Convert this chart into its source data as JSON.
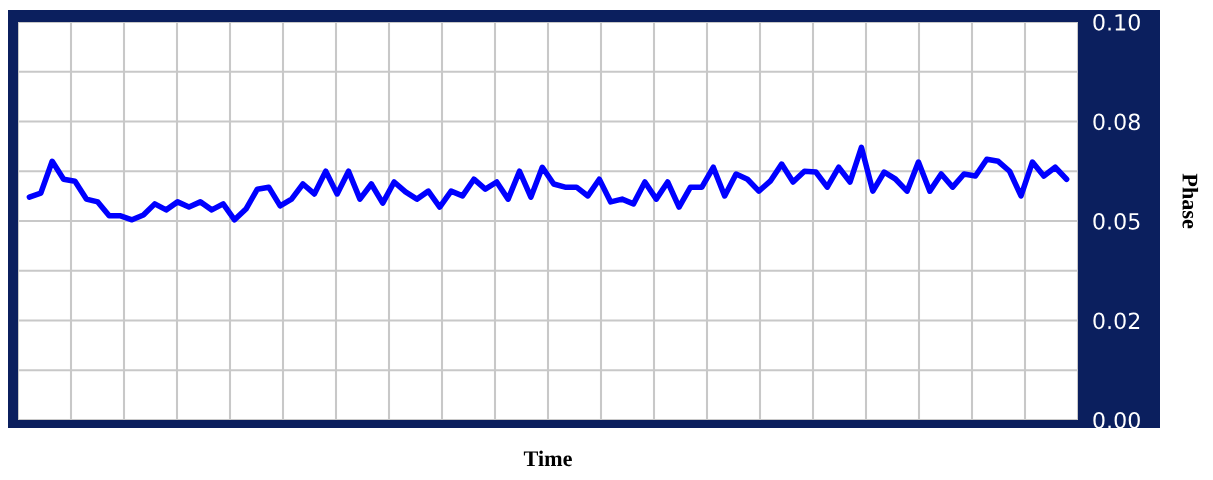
{
  "chart_data": {
    "type": "line",
    "xlabel": "Time",
    "ylabel": "Phase",
    "categories": [
      null,
      null,
      null,
      null,
      null,
      null,
      null,
      null,
      null,
      null,
      null,
      null,
      null,
      null,
      null,
      null,
      null,
      null,
      null,
      null,
      null,
      null,
      null,
      null,
      null,
      null,
      null,
      null,
      null,
      null,
      null,
      null,
      null,
      null,
      null,
      null,
      null,
      null,
      null,
      null,
      null,
      null,
      null,
      null,
      null,
      null,
      null,
      null,
      null,
      null,
      null,
      null,
      null,
      null,
      null,
      null,
      null,
      null,
      null,
      null,
      null,
      null,
      null,
      null,
      null,
      null,
      null,
      null,
      null,
      null,
      null,
      null,
      null,
      null,
      null,
      null,
      null,
      null,
      null,
      null,
      null,
      null,
      null,
      null,
      null,
      null,
      null,
      null,
      null,
      null,
      null,
      null
    ],
    "series": [
      {
        "color": "#0000ff",
        "values": [
          0.056,
          0.057,
          0.065,
          0.0605,
          0.06,
          0.0555,
          0.0548,
          0.0513,
          0.0513,
          0.0503,
          0.0515,
          0.0543,
          0.0528,
          0.0548,
          0.0535,
          0.0548,
          0.0528,
          0.0543,
          0.0503,
          0.053,
          0.058,
          0.0585,
          0.0538,
          0.0555,
          0.0593,
          0.0568,
          0.0625,
          0.0568,
          0.0625,
          0.0555,
          0.0593,
          0.0545,
          0.0598,
          0.0573,
          0.0555,
          0.0575,
          0.0535,
          0.0575,
          0.0563,
          0.0605,
          0.058,
          0.0598,
          0.0555,
          0.0625,
          0.056,
          0.0635,
          0.0593,
          0.0585,
          0.0585,
          0.0563,
          0.0605,
          0.0548,
          0.0555,
          0.0543,
          0.0598,
          0.0555,
          0.0598,
          0.0535,
          0.0585,
          0.0585,
          0.0635,
          0.0563,
          0.0618,
          0.0605,
          0.0575,
          0.06,
          0.0643,
          0.0598,
          0.0625,
          0.0623,
          0.0585,
          0.0635,
          0.0598,
          0.0685,
          0.0575,
          0.0623,
          0.0605,
          0.0575,
          0.0648,
          0.0575,
          0.0618,
          0.0585,
          0.0618,
          0.0613,
          0.0655,
          0.065,
          0.0625,
          0.0563,
          0.0648,
          0.0613,
          0.0635,
          0.0605
        ]
      }
    ],
    "ylim": [
      0,
      0.1
    ],
    "yticks": [
      {
        "value": 0,
        "label": "0.00"
      },
      {
        "value": 0.0125,
        "label": null
      },
      {
        "value": 0.025,
        "label": "0.02"
      },
      {
        "value": 0.0375,
        "label": null
      },
      {
        "value": 0.05,
        "label": "0.05"
      },
      {
        "value": 0.0625,
        "label": null
      },
      {
        "value": 0.075,
        "label": "0.08"
      },
      {
        "value": 0.0875,
        "label": null
      },
      {
        "value": 0.1,
        "label": "0.10"
      }
    ],
    "tick_labels": "y",
    "grid": true,
    "marker": "none",
    "line_style": "solid",
    "legend": false
  }
}
